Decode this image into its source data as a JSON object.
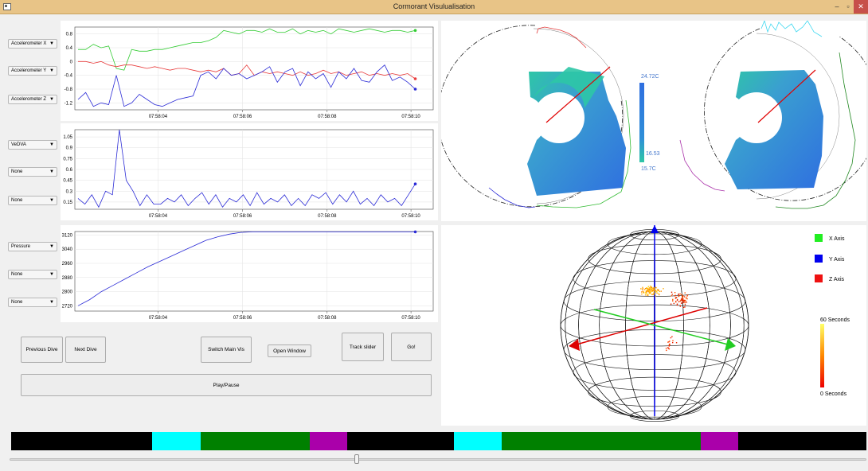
{
  "window": {
    "title": "Cormorant Visulualisation",
    "minimize": "–",
    "maximize": "▫",
    "close": "✕"
  },
  "selectors": {
    "chart1": [
      "Accelerometer X",
      "Accelerometer Y",
      "Accelerometer Z"
    ],
    "chart2": [
      "VeDVA",
      "None",
      "None"
    ],
    "chart3": [
      "Pressure",
      "None",
      "None"
    ]
  },
  "buttons": {
    "previous_dive": "Previous Dive",
    "next_dive": "Next Dive",
    "switch_main_vis": "Switch Main Vis",
    "open_window": "Open Window",
    "track_slider": "Track slider",
    "go": "Go!",
    "play_pause": "Play/Pause"
  },
  "colors": {
    "accel_x": "#33cc33",
    "accel_y": "#e83a3a",
    "accel_z": "#2b2bd6",
    "timeline_black": "#000000",
    "timeline_cyan": "#00ffff",
    "timeline_green": "#008000",
    "timeline_magenta": "#aa00aa"
  },
  "chart_data": [
    {
      "type": "line",
      "x_ticks": [
        "07:58:04",
        "07:58:06",
        "07:58:08",
        "07:58:10"
      ],
      "y_ticks": [
        "0.8",
        "0.4",
        "0",
        "-0.4",
        "-0.8",
        "-1.2"
      ],
      "ylim": [
        -1.4,
        1.0
      ],
      "series": [
        {
          "name": "Accelerometer X",
          "values": [
            0.35,
            0.35,
            0.5,
            0.4,
            0.45,
            -0.2,
            -0.25,
            0.35,
            0.3,
            0.3,
            0.35,
            0.35,
            0.4,
            0.45,
            0.5,
            0.55,
            0.55,
            0.6,
            0.7,
            0.9,
            0.85,
            0.8,
            0.9,
            0.9,
            0.85,
            0.95,
            0.85,
            0.85,
            0.95,
            0.8,
            0.9,
            0.85,
            0.9,
            0.8,
            0.95,
            0.9,
            0.85,
            0.9,
            0.95,
            0.9,
            0.85,
            0.9,
            0.9,
            0.85,
            0.9
          ]
        },
        {
          "name": "Accelerometer Y",
          "values": [
            0,
            0,
            -0.05,
            0,
            -0.1,
            -0.15,
            -0.1,
            -0.1,
            -0.15,
            -0.2,
            -0.15,
            -0.2,
            -0.25,
            -0.2,
            -0.2,
            -0.25,
            -0.3,
            -0.25,
            -0.3,
            -0.2,
            -0.4,
            -0.35,
            -0.1,
            -0.4,
            -0.3,
            -0.35,
            -0.3,
            -0.35,
            -0.4,
            -0.3,
            -0.4,
            -0.35,
            -0.25,
            -0.35,
            -0.3,
            -0.4,
            -0.35,
            -0.3,
            -0.4,
            -0.35,
            -0.4,
            -0.35,
            -0.4,
            -0.35,
            -0.5
          ]
        },
        {
          "name": "Accelerometer Z",
          "values": [
            -1.1,
            -0.9,
            -1.3,
            -1.2,
            -1.25,
            -0.4,
            -1.3,
            -1.2,
            -0.95,
            -1.1,
            -1.25,
            -1.3,
            -1.2,
            -1.1,
            -1.05,
            -1.0,
            -0.4,
            -0.3,
            -0.5,
            -0.2,
            -0.4,
            -0.35,
            -0.5,
            -0.4,
            -0.3,
            -0.15,
            -0.6,
            -0.3,
            -0.2,
            -0.7,
            -0.3,
            -0.5,
            -0.35,
            -0.75,
            -0.3,
            -0.5,
            -0.2,
            -0.55,
            -0.6,
            -0.3,
            -0.1,
            -0.55,
            -0.45,
            -0.6,
            -0.8
          ]
        }
      ]
    },
    {
      "type": "line",
      "x_ticks": [
        "07:58:04",
        "07:58:06",
        "07:58:08",
        "07:58:10"
      ],
      "y_ticks": [
        "1.05",
        "0.9",
        "0.75",
        "0.6",
        "0.45",
        "0.3",
        "0.15"
      ],
      "ylim": [
        0.05,
        1.15
      ],
      "series": [
        {
          "name": "VeDVA",
          "values": [
            0.2,
            0.12,
            0.25,
            0.08,
            0.3,
            0.25,
            1.15,
            0.45,
            0.3,
            0.1,
            0.25,
            0.12,
            0.12,
            0.2,
            0.15,
            0.25,
            0.1,
            0.2,
            0.28,
            0.12,
            0.25,
            0.08,
            0.2,
            0.15,
            0.25,
            0.1,
            0.28,
            0.12,
            0.2,
            0.15,
            0.25,
            0.1,
            0.2,
            0.1,
            0.25,
            0.2,
            0.28,
            0.12,
            0.25,
            0.15,
            0.3,
            0.12,
            0.2,
            0.1,
            0.25,
            0.15,
            0.2,
            0.1,
            0.25,
            0.4
          ]
        }
      ]
    },
    {
      "type": "line",
      "x_ticks": [
        "07:58:04",
        "07:58:06",
        "07:58:08",
        "07:58:10"
      ],
      "y_ticks": [
        "3120",
        "3040",
        "2960",
        "2880",
        "2800",
        "2720"
      ],
      "ylim": [
        2690,
        3140
      ],
      "series": [
        {
          "name": "Pressure",
          "values": [
            2720,
            2755,
            2800,
            2835,
            2870,
            2905,
            2940,
            2970,
            3000,
            3030,
            3060,
            3090,
            3110,
            3125,
            3135,
            3138,
            3138,
            3138,
            3138,
            3138,
            3138,
            3138,
            3138,
            3138,
            3138,
            3138,
            3138,
            3138,
            3138,
            3138
          ]
        }
      ]
    }
  ],
  "polar_colorbar": {
    "max_label": "24.72C",
    "marker_label": "16.53",
    "min_label": "15.7C"
  },
  "sphere_legend": {
    "x": "X Axis",
    "y": "Y Axis",
    "z": "Z Axis",
    "time_max": "60 Seconds",
    "time_min": "0 Seconds"
  },
  "timeline": [
    {
      "color": "#000000",
      "start": 0.0,
      "end": 0.165
    },
    {
      "color": "#00ffff",
      "start": 0.165,
      "end": 0.222
    },
    {
      "color": "#008000",
      "start": 0.222,
      "end": 0.349
    },
    {
      "color": "#aa00aa",
      "start": 0.349,
      "end": 0.393
    },
    {
      "color": "#000000",
      "start": 0.393,
      "end": 0.518
    },
    {
      "color": "#00ffff",
      "start": 0.518,
      "end": 0.574
    },
    {
      "color": "#008000",
      "start": 0.574,
      "end": 0.806
    },
    {
      "color": "#aa00aa",
      "start": 0.806,
      "end": 0.85
    },
    {
      "color": "#000000",
      "start": 0.85,
      "end": 1.0
    }
  ],
  "slider": {
    "position": 0.402
  }
}
